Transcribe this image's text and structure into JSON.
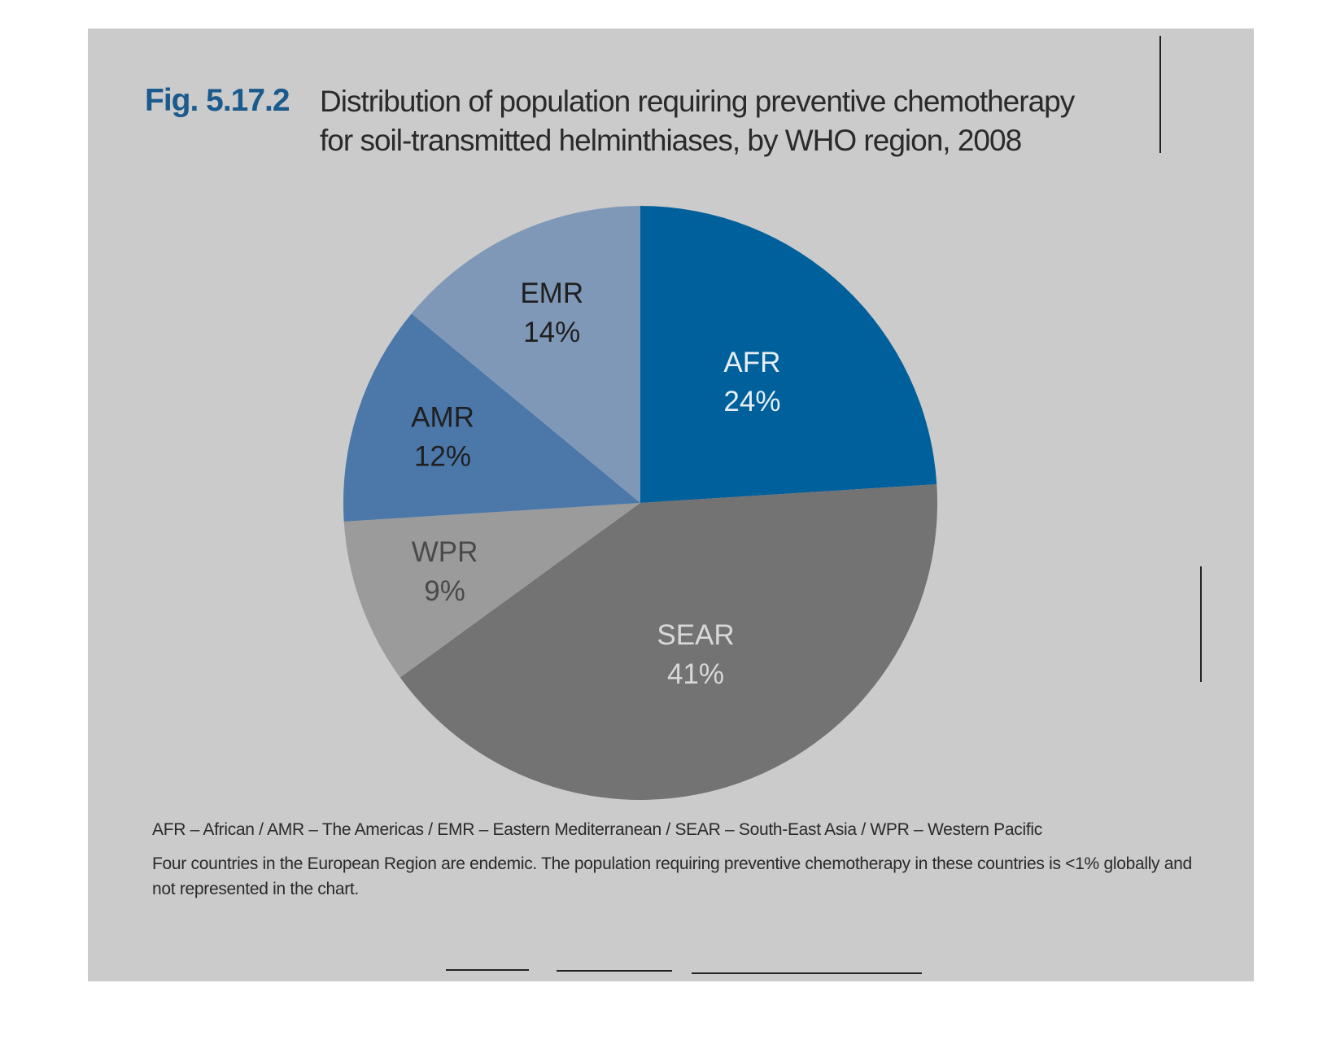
{
  "chart_data": {
    "type": "pie",
    "figure_label": "Fig. 5.17.2",
    "title": [
      "Distribution of population requiring preventive chemotherapy",
      "for soil-transmitted helminthiases, by WHO region, 2008"
    ],
    "categories": [
      "AFR",
      "SEAR",
      "WPR",
      "AMR",
      "EMR"
    ],
    "values": [
      24,
      41,
      9,
      12,
      14
    ],
    "value_labels": [
      "24%",
      "41%",
      "9%",
      "12%",
      "14%"
    ],
    "colors": [
      "#00609c",
      "#737373",
      "#9b9b9b",
      "#4b77a9",
      "#8098b7"
    ],
    "label_colors": [
      "#e6eef6",
      "#d8d8d8",
      "#4a4a4a",
      "#1f1f1f",
      "#1f1f1f"
    ],
    "notes": [
      "AFR – African / AMR – The Americas / EMR – Eastern Mediterranean / SEAR – South-East Asia / WPR – Western Pacific",
      "Four countries in the European Region are endemic. The population requiring preventive chemotherapy in these countries is <1% globally and not represented in the chart."
    ]
  }
}
